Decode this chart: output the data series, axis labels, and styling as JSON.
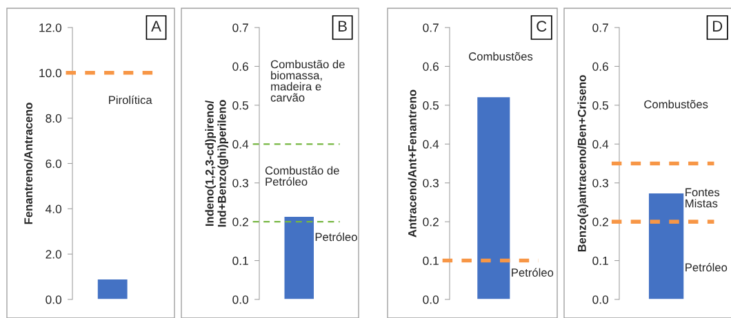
{
  "chart_data": [
    {
      "type": "bar",
      "title": "A",
      "categories": [
        null
      ],
      "values": [
        0.9
      ],
      "color": "#4472c4",
      "ylabel": "Fenantreno/Antraceno",
      "ylim": [
        0,
        12
      ],
      "yticks": [
        {
          "value": 0,
          "label": "0.0"
        },
        {
          "value": 2,
          "label": "2.0"
        },
        {
          "value": 4,
          "label": "4.0"
        },
        {
          "value": 6,
          "label": "6.0"
        },
        {
          "value": 8,
          "label": "8.0"
        },
        {
          "value": 10,
          "label": "10.0"
        },
        {
          "value": 12,
          "label": "12.0"
        }
      ],
      "ref_lines": [
        {
          "axis": "y",
          "value": 10,
          "color": "#f79646",
          "line_style": "dashed"
        }
      ],
      "annotations": [
        "Pirolítica"
      ],
      "grid": false,
      "tick_labels": "y"
    },
    {
      "type": "bar",
      "title": "B",
      "categories": [
        null
      ],
      "values": [
        0.214
      ],
      "color": "#4472c4",
      "ylabel": "Indeno(1,2,3-cd)pireno/\nInd+Benzo(ghi)perileno",
      "ylim": [
        0,
        0.7
      ],
      "yticks": [
        {
          "value": 0,
          "label": "0.0"
        },
        {
          "value": 0.1,
          "label": "0.1"
        },
        {
          "value": 0.2,
          "label": "0.2"
        },
        {
          "value": 0.3,
          "label": "0.3"
        },
        {
          "value": 0.4,
          "label": "0.4"
        },
        {
          "value": 0.5,
          "label": "0.5"
        },
        {
          "value": 0.6,
          "label": "0.6"
        },
        {
          "value": 0.7,
          "label": "0.7"
        }
      ],
      "ref_lines": [
        {
          "axis": "y",
          "value": 0.4,
          "color": "#77b743",
          "line_style": "dashed"
        },
        {
          "axis": "y",
          "value": 0.2,
          "color": "#77b743",
          "line_style": "dashed"
        }
      ],
      "annotations": [
        "Combustão de\nbiomassa,\nmadeira e\ncarvão",
        "Combustão de\nPetróleo",
        "Petróleo"
      ],
      "grid": false,
      "tick_labels": "y"
    },
    {
      "type": "bar",
      "title": "C",
      "categories": [
        null
      ],
      "values": [
        0.522
      ],
      "color": "#4472c4",
      "ylabel": "Antraceno/Ant+Fenantreno",
      "ylim": [
        0,
        0.7
      ],
      "yticks": [
        {
          "value": 0,
          "label": "0.0"
        },
        {
          "value": 0.1,
          "label": "0.1"
        },
        {
          "value": 0.2,
          "label": "0.2"
        },
        {
          "value": 0.3,
          "label": "0.3"
        },
        {
          "value": 0.4,
          "label": "0.4"
        },
        {
          "value": 0.5,
          "label": "0.5"
        },
        {
          "value": 0.6,
          "label": "0.6"
        },
        {
          "value": 0.7,
          "label": "0.7"
        }
      ],
      "ref_lines": [
        {
          "axis": "y",
          "value": 0.1,
          "color": "#f79646",
          "line_style": "dashed"
        }
      ],
      "annotations": [
        "Combustões",
        "Petróleo"
      ],
      "grid": false,
      "tick_labels": "y"
    },
    {
      "type": "bar",
      "title": "D",
      "categories": [
        null
      ],
      "values": [
        0.274
      ],
      "color": "#4472c4",
      "ylabel": "Benzo(a)antraceno/Ben+Criseno",
      "ylim": [
        0,
        0.7
      ],
      "yticks": [
        {
          "value": 0,
          "label": "0.0"
        },
        {
          "value": 0.1,
          "label": "0.1"
        },
        {
          "value": 0.2,
          "label": "0.2"
        },
        {
          "value": 0.3,
          "label": "0.3"
        },
        {
          "value": 0.4,
          "label": "0.4"
        },
        {
          "value": 0.5,
          "label": "0.5"
        },
        {
          "value": 0.6,
          "label": "0.6"
        },
        {
          "value": 0.7,
          "label": "0.7"
        }
      ],
      "ref_lines": [
        {
          "axis": "y",
          "value": 0.35,
          "color": "#f79646",
          "line_style": "dashed"
        },
        {
          "axis": "y",
          "value": 0.2,
          "color": "#f79646",
          "line_style": "dashed"
        }
      ],
      "annotations": [
        "Combustões",
        "Fontes\nMistas",
        "Petróleo"
      ],
      "grid": false,
      "tick_labels": "y"
    }
  ]
}
